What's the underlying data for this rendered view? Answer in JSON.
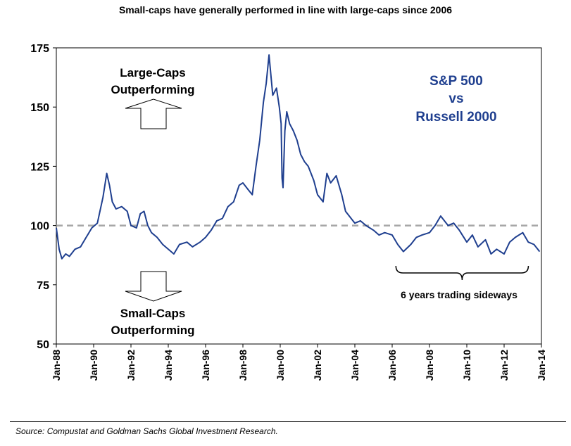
{
  "chart_data": {
    "type": "line",
    "title": "Small-caps have generally performed in line with large-caps since 2006",
    "legend": [
      "S&P 500",
      "vs",
      "Russell 2000"
    ],
    "xlabel": "",
    "ylabel": "",
    "ylim": [
      50,
      175
    ],
    "yticks": [
      50,
      75,
      100,
      125,
      150,
      175
    ],
    "xlim": [
      1988,
      2014
    ],
    "xticks": [
      {
        "label": "Jan-88",
        "x": 1988
      },
      {
        "label": "Jan-90",
        "x": 1990
      },
      {
        "label": "Jan-92",
        "x": 1992
      },
      {
        "label": "Jan-94",
        "x": 1994
      },
      {
        "label": "Jan-96",
        "x": 1996
      },
      {
        "label": "Jan-98",
        "x": 1998
      },
      {
        "label": "Jan-00",
        "x": 2000
      },
      {
        "label": "Jan-02",
        "x": 2002
      },
      {
        "label": "Jan-04",
        "x": 2004
      },
      {
        "label": "Jan-06",
        "x": 2006
      },
      {
        "label": "Jan-08",
        "x": 2008
      },
      {
        "label": "Jan-10",
        "x": 2010
      },
      {
        "label": "Jan-12",
        "x": 2012
      },
      {
        "label": "Jan-14",
        "x": 2014
      }
    ],
    "reference_line": {
      "y": 100,
      "style": "dashed"
    },
    "series": [
      {
        "name": "S&P 500 vs Russell 2000",
        "color": "#1f3f8f",
        "x": [
          1988.0,
          1988.15,
          1988.3,
          1988.5,
          1988.7,
          1989.0,
          1989.3,
          1989.6,
          1989.9,
          1990.2,
          1990.5,
          1990.7,
          1990.85,
          1991.0,
          1991.2,
          1991.5,
          1991.8,
          1992.0,
          1992.3,
          1992.5,
          1992.7,
          1992.9,
          1993.1,
          1993.4,
          1993.7,
          1994.0,
          1994.3,
          1994.6,
          1995.0,
          1995.3,
          1995.7,
          1996.0,
          1996.3,
          1996.6,
          1996.9,
          1997.2,
          1997.5,
          1997.8,
          1998.0,
          1998.3,
          1998.5,
          1998.7,
          1998.9,
          1999.1,
          1999.25,
          1999.4,
          1999.6,
          1999.8,
          1999.95,
          2000.05,
          2000.1,
          2000.15,
          2000.25,
          2000.35,
          2000.5,
          2000.7,
          2000.9,
          2001.1,
          2001.3,
          2001.5,
          2001.8,
          2002.0,
          2002.3,
          2002.5,
          2002.7,
          2003.0,
          2003.3,
          2003.5,
          2003.8,
          2004.0,
          2004.3,
          2004.6,
          2005.0,
          2005.3,
          2005.6,
          2006.0,
          2006.3,
          2006.6,
          2007.0,
          2007.3,
          2007.6,
          2008.0,
          2008.3,
          2008.6,
          2009.0,
          2009.3,
          2009.6,
          2010.0,
          2010.3,
          2010.6,
          2011.0,
          2011.3,
          2011.6,
          2012.0,
          2012.3,
          2012.6,
          2013.0,
          2013.3,
          2013.6,
          2013.9
        ],
        "values": [
          99,
          90,
          86,
          88,
          87,
          90,
          91,
          95,
          99,
          101,
          112,
          122,
          117,
          110,
          107,
          108,
          106,
          100,
          99,
          105,
          106,
          100,
          97,
          95,
          92,
          90,
          88,
          92,
          93,
          91,
          93,
          95,
          98,
          102,
          103,
          108,
          110,
          117,
          118,
          115,
          113,
          125,
          136,
          152,
          160,
          172,
          155,
          158,
          150,
          143,
          120,
          116,
          140,
          148,
          143,
          140,
          136,
          130,
          127,
          125,
          119,
          113,
          110,
          122,
          118,
          121,
          113,
          106,
          103,
          101,
          102,
          100,
          98,
          96,
          97,
          96,
          92,
          89,
          92,
          95,
          96,
          97,
          100,
          104,
          100,
          101,
          98,
          93,
          96,
          91,
          94,
          88,
          90,
          88,
          93,
          95,
          97,
          93,
          92,
          89
        ]
      }
    ],
    "annotations": {
      "large_caps": [
        "Large-Caps",
        "Outperforming"
      ],
      "small_caps": [
        "Small-Caps",
        "Outperforming"
      ],
      "sideways_note": "6 years trading sideways",
      "sideways_range": [
        2006.2,
        2013.3
      ]
    },
    "source": "Source: Compustat and Goldman Sachs Global Investment Research."
  }
}
